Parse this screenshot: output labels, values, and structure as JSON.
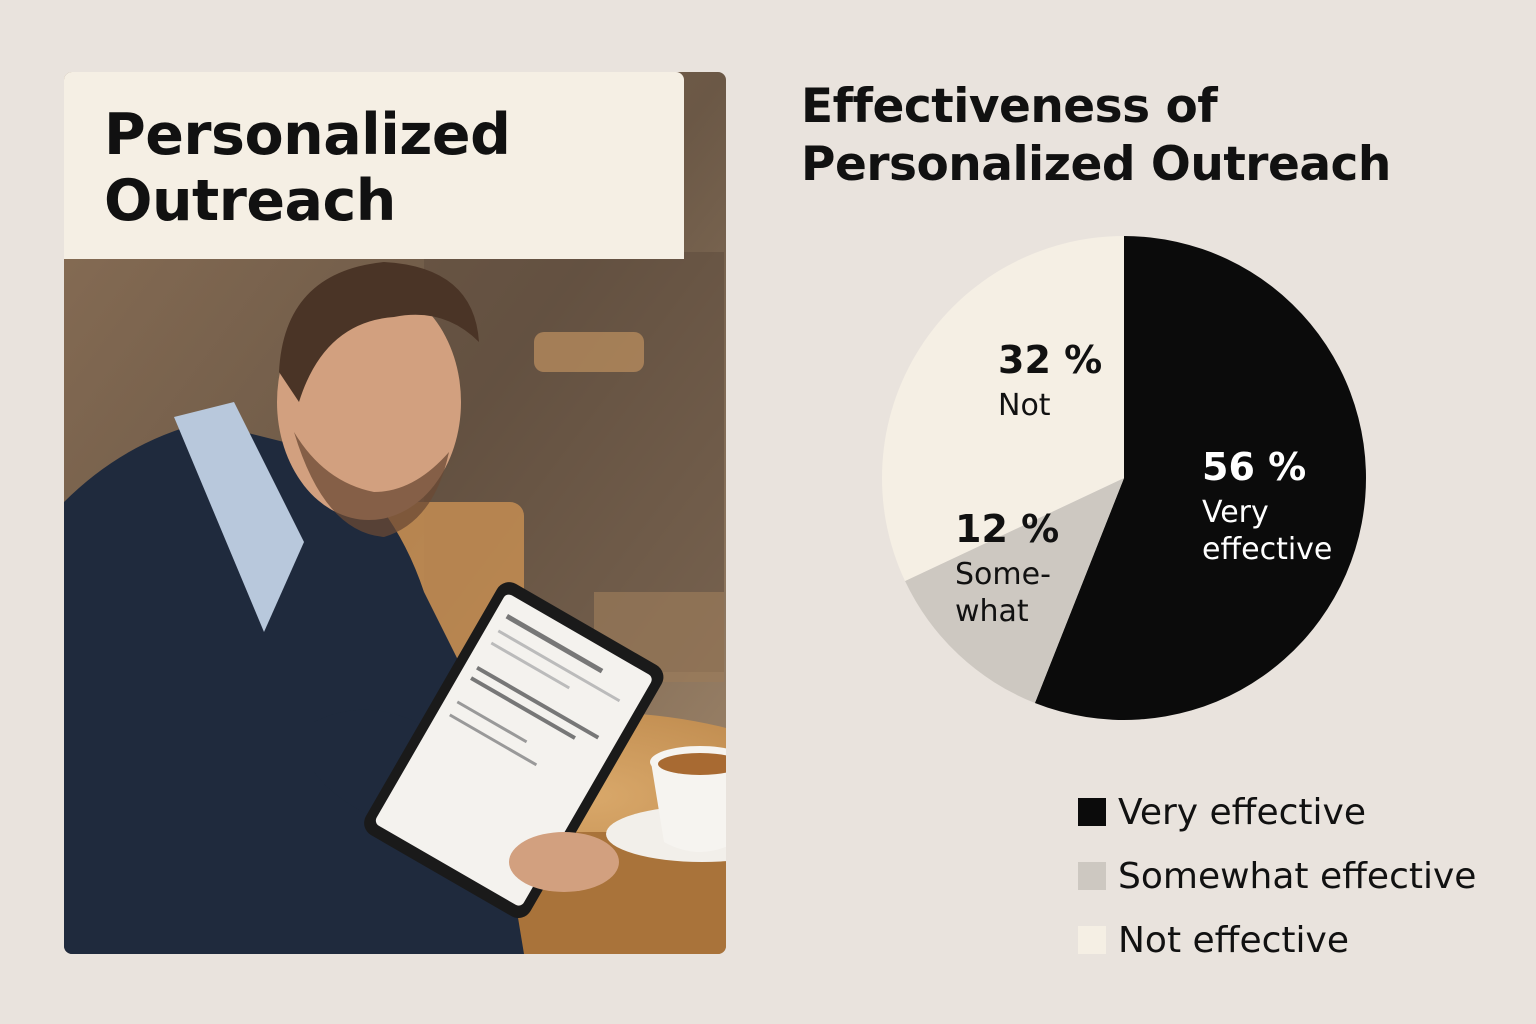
{
  "header": {
    "title_lines": [
      "Personalized",
      "Outreach"
    ]
  },
  "chart_data": {
    "type": "pie",
    "title_lines": [
      "Effectiveness of",
      "Personalized Outreach"
    ],
    "slices": [
      {
        "name": "Very effective",
        "value": 56,
        "label": "56 %",
        "sublabel_lines": [
          "Very",
          "effective"
        ],
        "color": "#0b0b0b",
        "text_color": "#ffffff"
      },
      {
        "name": "Somewhat effective",
        "value": 12,
        "label": "12 %",
        "sublabel_lines": [
          "Some-",
          "what"
        ],
        "color": "#cdc8c1",
        "text_color": "#111111"
      },
      {
        "name": "Not effective",
        "value": 32,
        "label": "32 %",
        "sublabel_lines": [
          "Not"
        ],
        "color": "#f5efe4",
        "text_color": "#111111"
      }
    ],
    "legend": [
      {
        "label": "Very effective",
        "color": "#0b0b0b"
      },
      {
        "label": "Somewhat effective",
        "color": "#cdc8c1"
      },
      {
        "label": "Not effective",
        "color": "#f5efe4"
      }
    ],
    "legend_position": "bottom-right"
  },
  "colors": {
    "background": "#e9e3dd",
    "card": "#f5efe4"
  }
}
